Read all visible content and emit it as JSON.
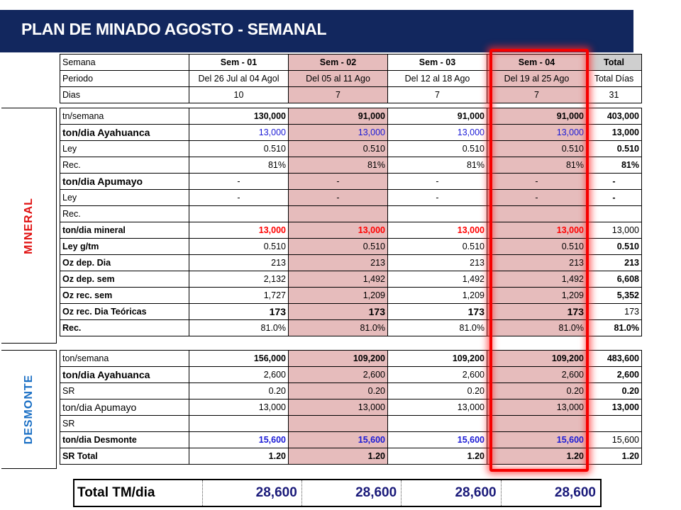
{
  "title": "PLAN DE MINADO AGOSTO - SEMANAL",
  "header": {
    "rows": [
      [
        "Semana",
        "Sem - 01",
        "Sem - 02",
        "Sem - 03",
        "Sem - 04",
        "Total"
      ],
      [
        "Periodo",
        "Del 26 Jul al 04 Agol",
        "Del 05 al 11 Ago",
        "Del 12 al 18 Ago",
        "Del 19 al 25 Ago",
        "Total Días"
      ],
      [
        "Dias",
        "10",
        "7",
        "7",
        "7",
        "31"
      ]
    ]
  },
  "mineral": {
    "side_label": "MINERAL",
    "rows": [
      [
        "tn/semana",
        "130,000",
        "91,000",
        "91,000",
        "91,000",
        "403,000"
      ],
      [
        "ton/dia Ayahuanca",
        "13,000",
        "13,000",
        "13,000",
        "13,000",
        "13,000"
      ],
      [
        "Ley",
        "0.510",
        "0.510",
        "0.510",
        "0.510",
        "0.510"
      ],
      [
        "Rec.",
        "81%",
        "81%",
        "81%",
        "81%",
        "81%"
      ],
      [
        "ton/dia Apumayo",
        "-",
        "-",
        "-",
        "-",
        "-"
      ],
      [
        "Ley",
        "-",
        "-",
        "-",
        "-",
        "-"
      ],
      [
        "Rec.",
        "",
        "",
        "",
        "",
        ""
      ],
      [
        "ton/dia mineral",
        "13,000",
        "13,000",
        "13,000",
        "13,000",
        "13,000"
      ],
      [
        "Ley g/tm",
        "0.510",
        "0.510",
        "0.510",
        "0.510",
        "0.510"
      ],
      [
        "Oz dep. Dia",
        "213",
        "213",
        "213",
        "213",
        "213"
      ],
      [
        "Oz dep. sem",
        "2,132",
        "1,492",
        "1,492",
        "1,492",
        "6,608"
      ],
      [
        "Oz rec. sem",
        "1,727",
        "1,209",
        "1,209",
        "1,209",
        "5,352"
      ],
      [
        "Oz rec. Dia Teóricas",
        "173",
        "173",
        "173",
        "173",
        "173"
      ],
      [
        "Rec.",
        "81.0%",
        "81.0%",
        "81.0%",
        "81.0%",
        "81.0%"
      ]
    ]
  },
  "desmonte": {
    "side_label": "DESMONTE",
    "rows": [
      [
        "ton/semana",
        "156,000",
        "109,200",
        "109,200",
        "109,200",
        "483,600"
      ],
      [
        "ton/dia Ayahuanca",
        "2,600",
        "2,600",
        "2,600",
        "2,600",
        "2,600"
      ],
      [
        "SR",
        "0.20",
        "0.20",
        "0.20",
        "0.20",
        "0.20"
      ],
      [
        "ton/dia Apumayo",
        "13,000",
        "13,000",
        "13,000",
        "13,000",
        "13,000"
      ],
      [
        "SR",
        "",
        "",
        "",
        "",
        ""
      ],
      [
        "ton/dia Desmonte",
        "15,600",
        "15,600",
        "15,600",
        "15,600",
        "15,600"
      ],
      [
        "SR Total",
        "1.20",
        "1.20",
        "1.20",
        "1.20",
        "1.20"
      ]
    ]
  },
  "total_tm": {
    "label": "Total TM/dia",
    "values": [
      "28,600",
      "28,600",
      "28,600",
      "28,600"
    ]
  },
  "colors": {
    "banner": "#12275e",
    "week2_fill": "#e6bcbc",
    "highlight_border": "#f50000",
    "mineral_label": "#e01010",
    "desmonte_label": "#1a6fc4"
  }
}
